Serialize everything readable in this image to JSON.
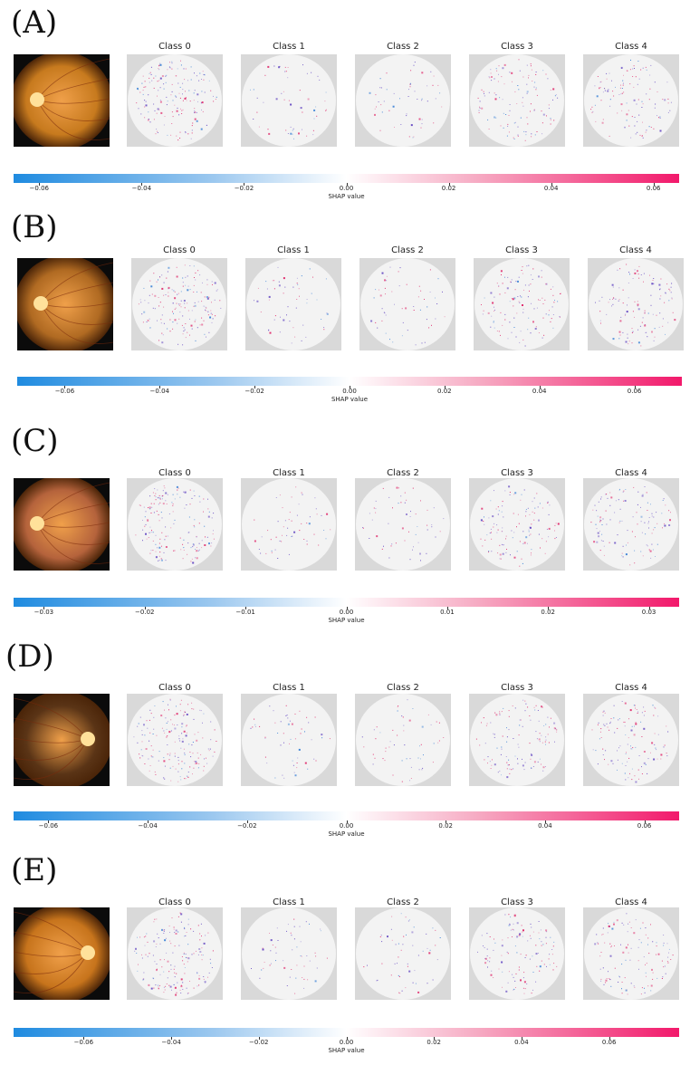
{
  "classes": [
    "Class 0",
    "Class 1",
    "Class 2",
    "Class 3",
    "Class 4"
  ],
  "colorbar_label": "SHAP value",
  "colors": {
    "negative": "#1f8be0",
    "zero": "#ffffff",
    "positive": "#f2196b",
    "map_background": "#d9d9d9"
  },
  "panels": [
    {
      "label": "(A)",
      "fundus": {
        "tone": "#c77a1e",
        "disc_side": "left"
      },
      "ticks": [
        "−0.06",
        "−0.04",
        "−0.02",
        "0.00",
        "0.02",
        "0.04",
        "0.06"
      ],
      "range": [
        -0.065,
        0.065
      ]
    },
    {
      "label": "(B)",
      "fundus": {
        "tone": "#b06a22",
        "disc_side": "left"
      },
      "ticks": [
        "−0.06",
        "−0.04",
        "−0.02",
        "0.00",
        "0.02",
        "0.04",
        "0.06"
      ],
      "range": [
        -0.07,
        0.07
      ]
    },
    {
      "label": "(C)",
      "fundus": {
        "tone": "#b5633c",
        "disc_side": "left"
      },
      "ticks": [
        "−0.03",
        "−0.02",
        "−0.01",
        "0.00",
        "0.01",
        "0.02",
        "0.03"
      ],
      "range": [
        -0.033,
        0.033
      ]
    },
    {
      "label": "(D)",
      "fundus": {
        "tone": "#5a3416",
        "disc_side": "right"
      },
      "ticks": [
        "−0.06",
        "−0.04",
        "−0.02",
        "0.00",
        "0.02",
        "0.04",
        "0.06"
      ],
      "range": [
        -0.067,
        0.067
      ]
    },
    {
      "label": "(E)",
      "fundus": {
        "tone": "#c7741c",
        "disc_side": "right"
      },
      "ticks": [
        "−0.06",
        "−0.04",
        "−0.02",
        "0.00",
        "0.02",
        "0.04",
        "0.06"
      ],
      "range": [
        -0.076,
        0.076
      ]
    }
  ]
}
